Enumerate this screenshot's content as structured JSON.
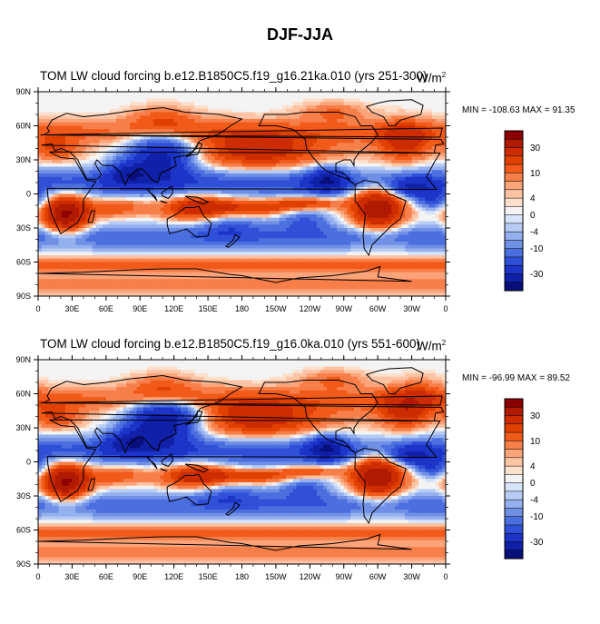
{
  "title": "DJF-JJA",
  "units_label": "W/m",
  "units_exponent": "2",
  "chart_data": [
    {
      "type": "heatmap",
      "title": "TOM LW cloud forcing",
      "subtitle": "b.e12.B1850C5.f19_g16.21ka.010 (yrs 251-300)",
      "stats": "MIN = -108.63 MAX =  91.35",
      "min": -108.63,
      "max": 91.35,
      "xlim": [
        0,
        360
      ],
      "ylim": [
        -90,
        90
      ],
      "x_ticks": [
        "0",
        "30E",
        "60E",
        "90E",
        "120E",
        "150E",
        "180",
        "150W",
        "120W",
        "90W",
        "60W",
        "30W",
        "0"
      ],
      "y_ticks": [
        "90N",
        "60N",
        "30N",
        "0",
        "30S",
        "60S",
        "90S"
      ],
      "colorbar_levels": [
        -40,
        -35,
        -30,
        -25,
        -20,
        -15,
        -10,
        -5,
        -4,
        -2,
        0,
        2,
        4,
        5,
        10,
        15,
        20,
        25,
        30,
        35,
        40
      ],
      "colorbar_labels": [
        "30",
        "10",
        "4",
        "0",
        "-4",
        "-10",
        "-30"
      ]
    },
    {
      "type": "heatmap",
      "title": "TOM LW cloud forcing",
      "subtitle": "b.e12.B1850C5.f19_g16.0ka.010 (yrs 551-600)",
      "stats": "MIN = -96.99 MAX =  89.52",
      "min": -96.99,
      "max": 89.52,
      "xlim": [
        0,
        360
      ],
      "ylim": [
        -90,
        90
      ],
      "x_ticks": [
        "0",
        "30E",
        "60E",
        "90E",
        "120E",
        "150E",
        "180",
        "150W",
        "120W",
        "90W",
        "60W",
        "30W",
        "0"
      ],
      "y_ticks": [
        "90N",
        "60N",
        "30N",
        "0",
        "30S",
        "60S",
        "90S"
      ],
      "colorbar_levels": [
        -40,
        -35,
        -30,
        -25,
        -20,
        -15,
        -10,
        -5,
        -4,
        -2,
        0,
        2,
        4,
        5,
        10,
        15,
        20,
        25,
        30,
        35,
        40
      ],
      "colorbar_labels": [
        "30",
        "10",
        "4",
        "0",
        "-4",
        "-10",
        "-30"
      ]
    }
  ],
  "colors": {
    "colorbar_top_to_bottom": [
      "#8b0000",
      "#b01a00",
      "#cc2c00",
      "#e04000",
      "#f25a1a",
      "#f77f4a",
      "#fba47a",
      "#fcc4a4",
      "#fde0cc",
      "#f3f3f3",
      "#d7e3f8",
      "#b7ccf4",
      "#95b0ee",
      "#7090e6",
      "#4c6fe0",
      "#3050d8",
      "#1c34c8",
      "#1020a8",
      "#080f7a"
    ],
    "land_outline": "#000000"
  }
}
